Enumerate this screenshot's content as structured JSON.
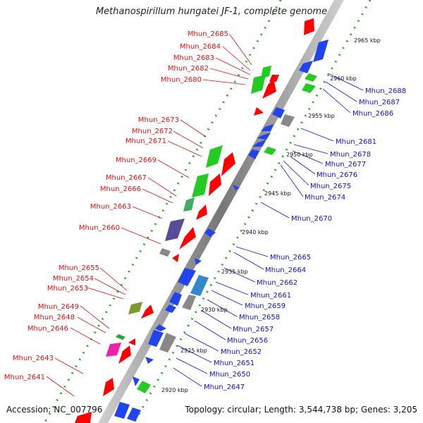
{
  "title": "Methanospirillum hungatei JF-1, complete genome",
  "footer": {
    "accession": "Accession: NC_007796",
    "topology": "Topology: circular; Length: 3,544,738 bp; Genes: 3,205"
  },
  "ticks": [
    "2965 kbp",
    "2960 kbp",
    "2955 kbp",
    "2950 kbp",
    "2945 kbp",
    "2940 kbp",
    "2935 kbp",
    "2930 kbp",
    "2925 kbp",
    "2920 kbp"
  ],
  "left_labels": [
    "Mhun_2685",
    "Mhun_2684",
    "Mhun_2683",
    "Mhun_2682",
    "Mhun_2680",
    "Mhun_2673",
    "Mhun_2672",
    "Mhun_2671",
    "Mhun_2669",
    "Mhun_2667",
    "Mhun_2666",
    "Mhun_2663",
    "Mhun_2660",
    "Mhun_2655",
    "Mhun_2654",
    "Mhun_2653",
    "Mhun_2649",
    "Mhun_2648",
    "Mhun_2646",
    "Mhun_2643",
    "Mhun_2641"
  ],
  "right_labels": [
    "Mhun_2688",
    "Mhun_2687",
    "Mhun_2686",
    "Mhun_2681",
    "Mhun_2678",
    "Mhun_2677",
    "Mhun_2676",
    "Mhun_2675",
    "Mhun_2674",
    "Mhun_2670",
    "Mhun_2665",
    "Mhun_2664",
    "Mhun_2662",
    "Mhun_2661",
    "Mhun_2659",
    "Mhun_2658",
    "Mhun_2657",
    "Mhun_2656",
    "Mhun_2652",
    "Mhun_2651",
    "Mhun_2650",
    "Mhun_2647"
  ],
  "colors": {
    "forward": "#ff0000",
    "reverse": "#0000ff",
    "backbone": "#888888",
    "tick_dots": "#22aa22",
    "red_text": "#dd1111",
    "blue_text": "#1111cc"
  }
}
